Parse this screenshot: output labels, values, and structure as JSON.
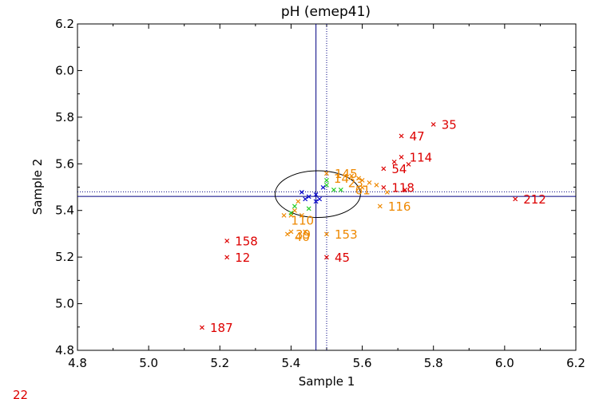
{
  "chart_data": {
    "type": "scatter",
    "title": "pH (emep41)",
    "xlabel": "Sample 1",
    "ylabel": "Sample 2",
    "xlim": [
      4.8,
      6.2
    ],
    "ylim": [
      4.8,
      6.2
    ],
    "xticks": [
      "4.8",
      "5.0",
      "5.2",
      "5.4",
      "5.6",
      "5.8",
      "6.0",
      "6.2"
    ],
    "yticks": [
      "4.8",
      "5.0",
      "5.2",
      "5.4",
      "5.6",
      "5.8",
      "6.0",
      "6.2"
    ],
    "grid": false,
    "reference_lines": {
      "vertical_solid": 5.47,
      "vertical_dotted": 5.5,
      "horizontal_solid": 5.46,
      "horizontal_dotted": 5.48
    },
    "ellipse": {
      "cx": 5.475,
      "cy": 5.47,
      "rx": 0.12,
      "ry": 0.1
    },
    "colors": {
      "red": "#dd0000",
      "orange": "#ee8800",
      "green": "#22cc22",
      "blue": "#0000cc",
      "ref": "#000080"
    },
    "series": [
      {
        "color": "red",
        "points": [
          {
            "x": 5.8,
            "y": 5.77,
            "label": "35"
          },
          {
            "x": 5.71,
            "y": 5.72,
            "label": "47"
          },
          {
            "x": 5.71,
            "y": 5.63,
            "label": "114"
          },
          {
            "x": 5.69,
            "y": 5.61,
            "label": ""
          },
          {
            "x": 5.73,
            "y": 5.6,
            "label": ""
          },
          {
            "x": 5.66,
            "y": 5.58,
            "label": "54"
          },
          {
            "x": 5.66,
            "y": 5.5,
            "label": "118"
          },
          {
            "x": 5.72,
            "y": 5.49,
            "label": ""
          },
          {
            "x": 6.03,
            "y": 5.45,
            "label": "212"
          },
          {
            "x": 5.22,
            "y": 5.27,
            "label": "158"
          },
          {
            "x": 5.22,
            "y": 5.2,
            "label": "12"
          },
          {
            "x": 5.5,
            "y": 5.2,
            "label": "45"
          },
          {
            "x": 5.15,
            "y": 4.9,
            "label": "187"
          }
        ]
      },
      {
        "color": "orange",
        "points": [
          {
            "x": 5.5,
            "y": 5.56,
            "label": "145"
          },
          {
            "x": 5.57,
            "y": 5.55,
            "label": ""
          },
          {
            "x": 5.59,
            "y": 5.54,
            "label": ""
          },
          {
            "x": 5.6,
            "y": 5.53,
            "label": ""
          },
          {
            "x": 5.62,
            "y": 5.52,
            "label": ""
          },
          {
            "x": 5.64,
            "y": 5.51,
            "label": ""
          },
          {
            "x": 5.6,
            "y": 5.5,
            "label": ""
          },
          {
            "x": 5.67,
            "y": 5.48,
            "label": ""
          },
          {
            "x": 5.65,
            "y": 5.42,
            "label": "116"
          },
          {
            "x": 5.42,
            "y": 5.44,
            "label": ""
          },
          {
            "x": 5.41,
            "y": 5.4,
            "label": ""
          },
          {
            "x": 5.4,
            "y": 5.38,
            "label": ""
          },
          {
            "x": 5.38,
            "y": 5.38,
            "label": ""
          },
          {
            "x": 5.43,
            "y": 5.38,
            "label": ""
          },
          {
            "x": 5.39,
            "y": 5.3,
            "label": "39"
          },
          {
            "x": 5.4,
            "y": 5.31,
            "label": ""
          },
          {
            "x": 5.44,
            "y": 5.31,
            "label": ""
          },
          {
            "x": 5.5,
            "y": 5.3,
            "label": "153"
          }
        ]
      },
      {
        "color": "green",
        "points": [
          {
            "x": 5.5,
            "y": 5.53,
            "label": ""
          },
          {
            "x": 5.5,
            "y": 5.51,
            "label": ""
          },
          {
            "x": 5.52,
            "y": 5.49,
            "label": ""
          },
          {
            "x": 5.54,
            "y": 5.49,
            "label": ""
          },
          {
            "x": 5.41,
            "y": 5.42,
            "label": ""
          },
          {
            "x": 5.4,
            "y": 5.39,
            "label": ""
          },
          {
            "x": 5.45,
            "y": 5.41,
            "label": ""
          }
        ]
      },
      {
        "color": "blue",
        "points": [
          {
            "x": 5.43,
            "y": 5.48,
            "label": ""
          },
          {
            "x": 5.44,
            "y": 5.45,
            "label": ""
          },
          {
            "x": 5.45,
            "y": 5.46,
            "label": ""
          },
          {
            "x": 5.47,
            "y": 5.47,
            "label": ""
          },
          {
            "x": 5.48,
            "y": 5.45,
            "label": ""
          },
          {
            "x": 5.47,
            "y": 5.44,
            "label": ""
          },
          {
            "x": 5.49,
            "y": 5.5,
            "label": ""
          }
        ]
      }
    ],
    "overlap_labels": [
      {
        "x": 5.52,
        "y": 5.54,
        "text": "14",
        "color": "orange"
      },
      {
        "x": 5.56,
        "y": 5.52,
        "text": "23",
        "color": "orange"
      },
      {
        "x": 5.58,
        "y": 5.49,
        "text": "61",
        "color": "orange"
      },
      {
        "x": 5.4,
        "y": 5.36,
        "text": "110",
        "color": "orange"
      },
      {
        "x": 5.41,
        "y": 5.29,
        "text": "40",
        "color": "orange"
      }
    ],
    "corner_note": {
      "text": "22",
      "color": "red"
    }
  }
}
